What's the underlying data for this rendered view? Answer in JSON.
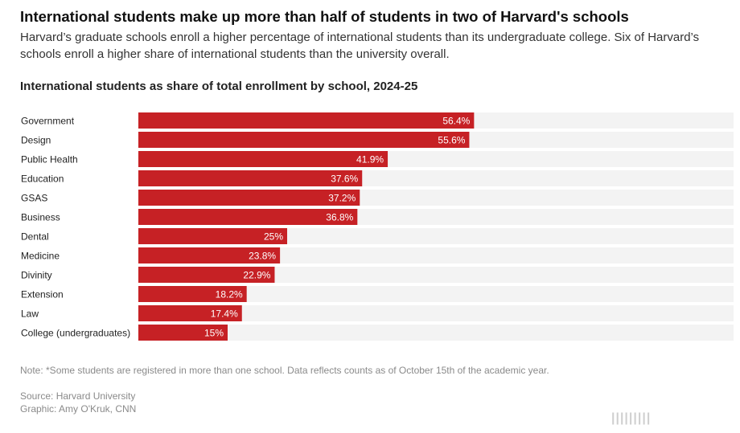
{
  "headline": "International students make up more than half of students in two of Harvard's schools",
  "dek": "Harvard’s graduate schools enroll a higher percentage of international students than its undergraduate college. Six of Harvard’s schools enroll a higher share of international students than the university overall.",
  "note": "Note: *Some students are registered in more than one school. Data reflects counts as of October 15th of the academic year.",
  "source": "Source: Harvard University",
  "graphic_credit": "Graphic: Amy O'Kruk, CNN",
  "watermark": "|||||||||",
  "colors": {
    "bar": "#c62125",
    "track": "#f3f3f3"
  },
  "chart_data": {
    "type": "bar",
    "orientation": "horizontal",
    "title": "International students as share of total enrollment by school, 2024-25",
    "xlabel": "",
    "ylabel": "",
    "xlim": [
      0,
      100
    ],
    "grid": false,
    "categories": [
      "Government",
      "Design",
      "Public Health",
      "Education",
      "GSAS",
      "Business",
      "Dental",
      "Medicine",
      "Divinity",
      "Extension",
      "Law",
      "College (undergraduates)"
    ],
    "values": [
      56.4,
      55.6,
      41.9,
      37.6,
      37.2,
      36.8,
      25,
      23.8,
      22.9,
      18.2,
      17.4,
      15
    ],
    "value_labels": [
      "56.4%",
      "55.6%",
      "41.9%",
      "37.6%",
      "37.2%",
      "36.8%",
      "25%",
      "23.8%",
      "22.9%",
      "18.2%",
      "17.4%",
      "15%"
    ]
  }
}
